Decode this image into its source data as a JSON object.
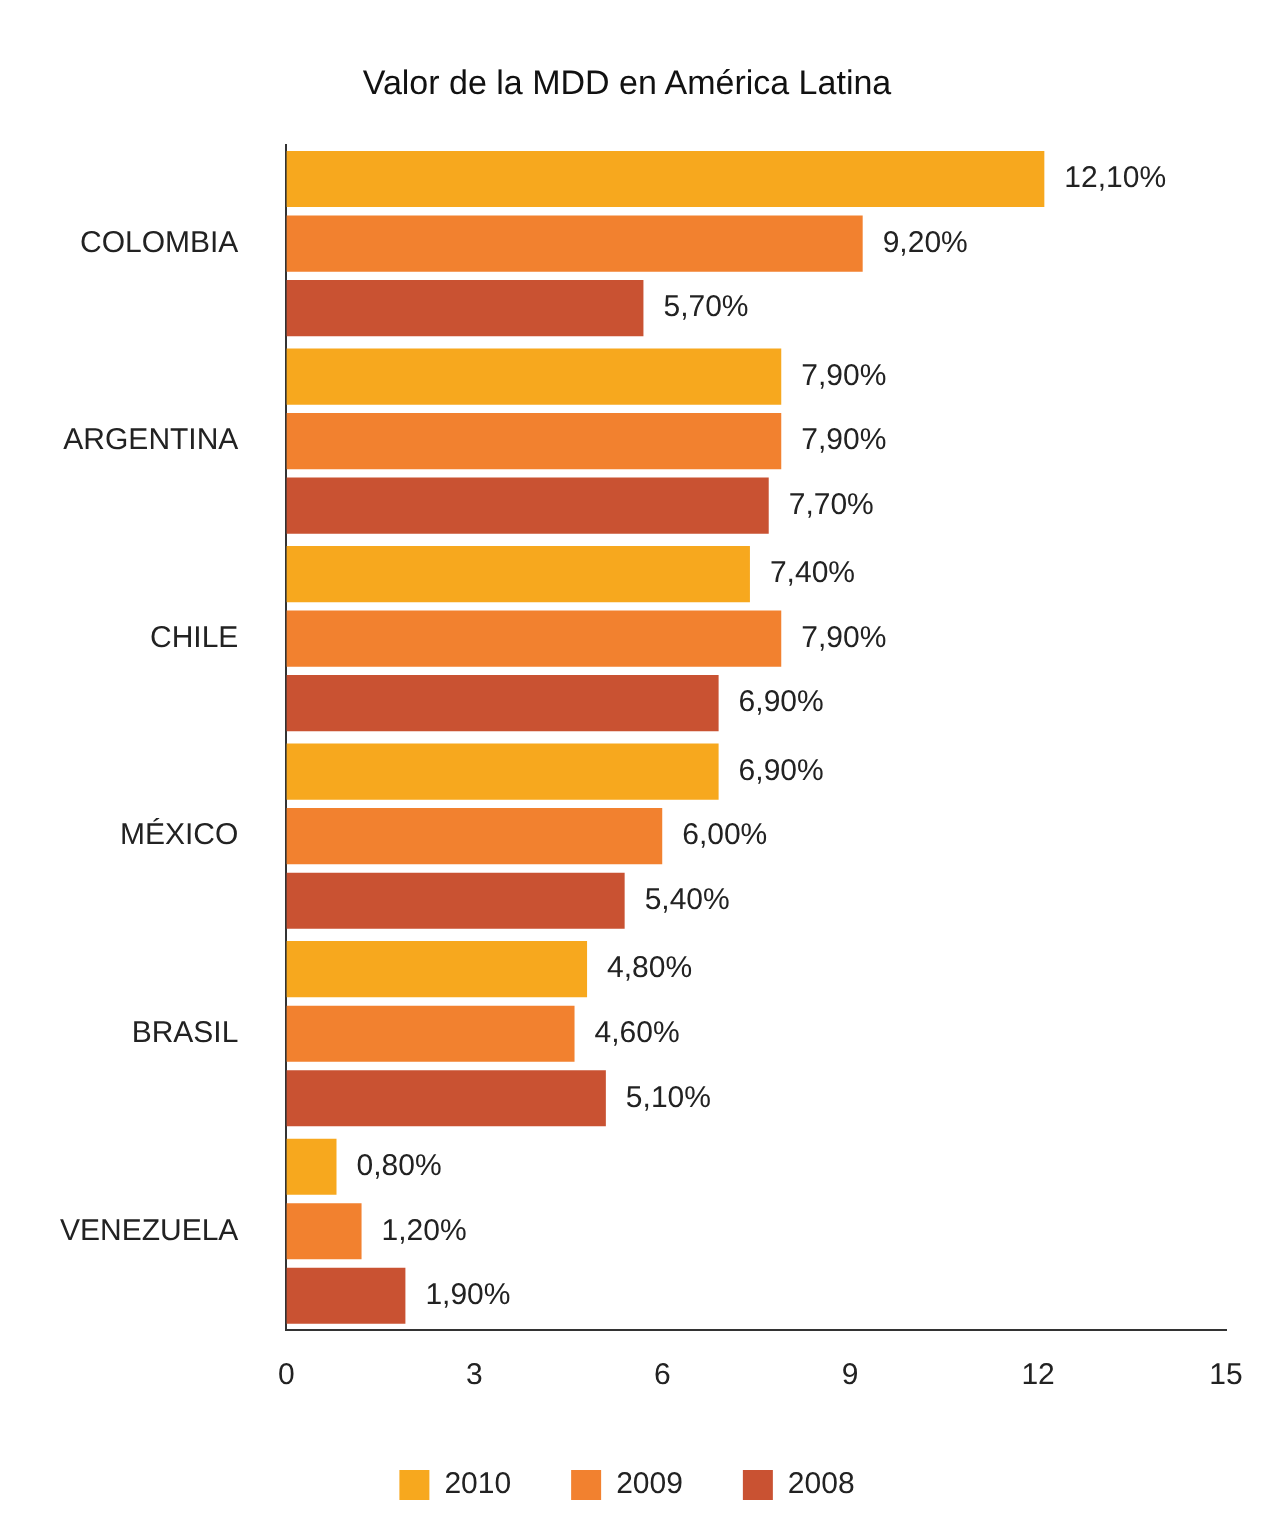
{
  "chart_data": {
    "type": "bar",
    "orientation": "horizontal",
    "title": "Valor de la MDD en América Latina",
    "categories": [
      "COLOMBIA",
      "ARGENTINA",
      "CHILE",
      "MÉXICO",
      "BRASIL",
      "VENEZUELA"
    ],
    "series": [
      {
        "name": "2010",
        "color": "#f7a81e",
        "values": [
          12.1,
          7.9,
          7.4,
          6.9,
          4.8,
          0.8
        ],
        "value_labels": [
          "12,10%",
          "7,90%",
          "7,40%",
          "6,90%",
          "4,80%",
          "0,80%"
        ]
      },
      {
        "name": "2009",
        "color": "#f2812f",
        "values": [
          9.2,
          7.9,
          7.9,
          6.0,
          4.6,
          1.2
        ],
        "value_labels": [
          "9,20%",
          "7,90%",
          "7,90%",
          "6,00%",
          "4,60%",
          "1,20%"
        ]
      },
      {
        "name": "2008",
        "color": "#c95232",
        "values": [
          5.7,
          7.7,
          6.9,
          5.4,
          5.1,
          1.9
        ],
        "value_labels": [
          "5,70%",
          "7,70%",
          "6,90%",
          "5,40%",
          "5,10%",
          "1,90%"
        ]
      }
    ],
    "xlim": [
      0,
      15
    ],
    "xticks": [
      0,
      3,
      6,
      9,
      12,
      15
    ],
    "grid": false,
    "legend": "bottom"
  }
}
